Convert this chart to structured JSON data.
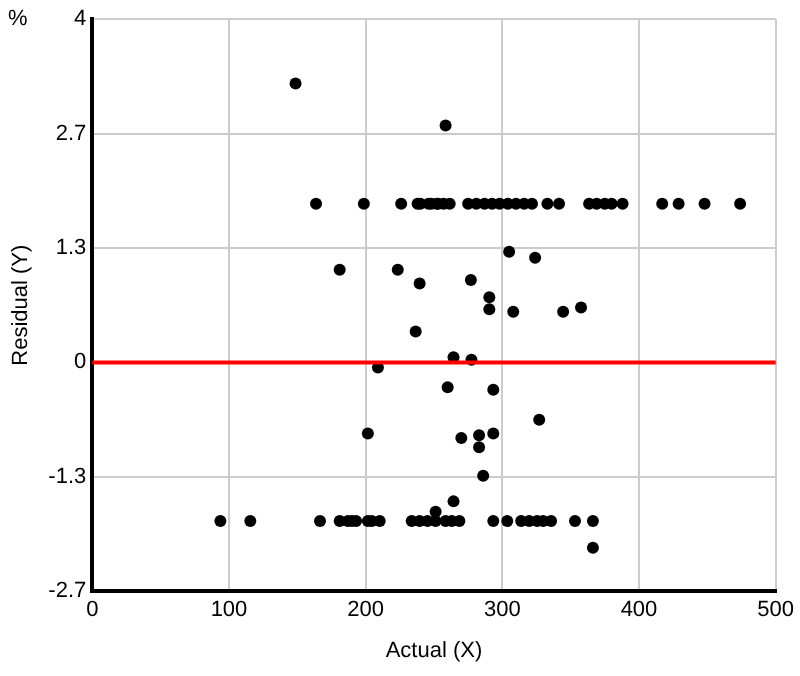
{
  "chart_data": {
    "type": "scatter",
    "xlabel": "Actual (X)",
    "ylabel": "Residual (Y)",
    "annotations": [
      "%"
    ],
    "xlim": [
      0,
      500
    ],
    "xticks": [
      0,
      100,
      200,
      300,
      400,
      500
    ],
    "ylim": [
      -2.667,
      4
    ],
    "yticks": [
      {
        "value": -2.667,
        "label": "-2.7"
      },
      {
        "value": -1.333,
        "label": "-1.3"
      },
      0,
      {
        "value": 1.333,
        "label": "1.3"
      },
      {
        "value": 2.667,
        "label": "2.7"
      },
      4
    ],
    "grid": true,
    "marker": "circle",
    "legend": false,
    "ref_lines": [
      {
        "axis": "y",
        "value": 0,
        "color": "#ff0000"
      }
    ],
    "series": [
      {
        "color": "#000000",
        "x": [
          148.7,
          258.5,
          163.7,
          198.7,
          226,
          238,
          240,
          246,
          252,
          248,
          253,
          257,
          261.5,
          275,
          281,
          287,
          292.5,
          298,
          304,
          310,
          316,
          321.7,
          333,
          341.5,
          363.5,
          369,
          375,
          380,
          388,
          417,
          429,
          448,
          474,
          181,
          223.5,
          239.5,
          236.6,
          305,
          324,
          277,
          290.5,
          290.5,
          308,
          344.5,
          357.6,
          209,
          201.6,
          264.3,
          277.4,
          260,
          293.4,
          327,
          270,
          283,
          283,
          293.4,
          286,
          264.3,
          251.2,
          93.7,
          115.6,
          166.6,
          181,
          187,
          190,
          193,
          201.6,
          204.5,
          210.3,
          233.7,
          239.5,
          245.3,
          251.2,
          258.5,
          263,
          268.6,
          293.4,
          303.6,
          313.8,
          319.7,
          325.5,
          329.9,
          335.7,
          353.2,
          366.3,
          366.3
        ],
        "values": [
          3.25,
          2.76,
          1.85,
          1.85,
          1.85,
          1.85,
          1.85,
          1.85,
          1.85,
          1.85,
          1.85,
          1.85,
          1.85,
          1.85,
          1.85,
          1.85,
          1.85,
          1.85,
          1.85,
          1.85,
          1.85,
          1.85,
          1.85,
          1.85,
          1.85,
          1.85,
          1.85,
          1.85,
          1.85,
          1.85,
          1.85,
          1.85,
          1.85,
          1.08,
          1.08,
          0.92,
          0.36,
          1.29,
          1.22,
          0.96,
          0.76,
          0.62,
          0.59,
          0.59,
          0.64,
          -0.06,
          -0.83,
          0.06,
          0.03,
          -0.29,
          -0.32,
          -0.67,
          -0.88,
          -0.85,
          -0.99,
          -0.83,
          -1.32,
          -1.62,
          -1.74,
          -1.85,
          -1.85,
          -1.85,
          -1.85,
          -1.85,
          -1.85,
          -1.85,
          -1.85,
          -1.85,
          -1.85,
          -1.85,
          -1.85,
          -1.85,
          -1.85,
          -1.85,
          -1.85,
          -1.85,
          -1.85,
          -1.85,
          -1.85,
          -1.85,
          -1.85,
          -1.85,
          -1.85,
          -1.85,
          -1.85,
          -2.16
        ]
      }
    ]
  }
}
